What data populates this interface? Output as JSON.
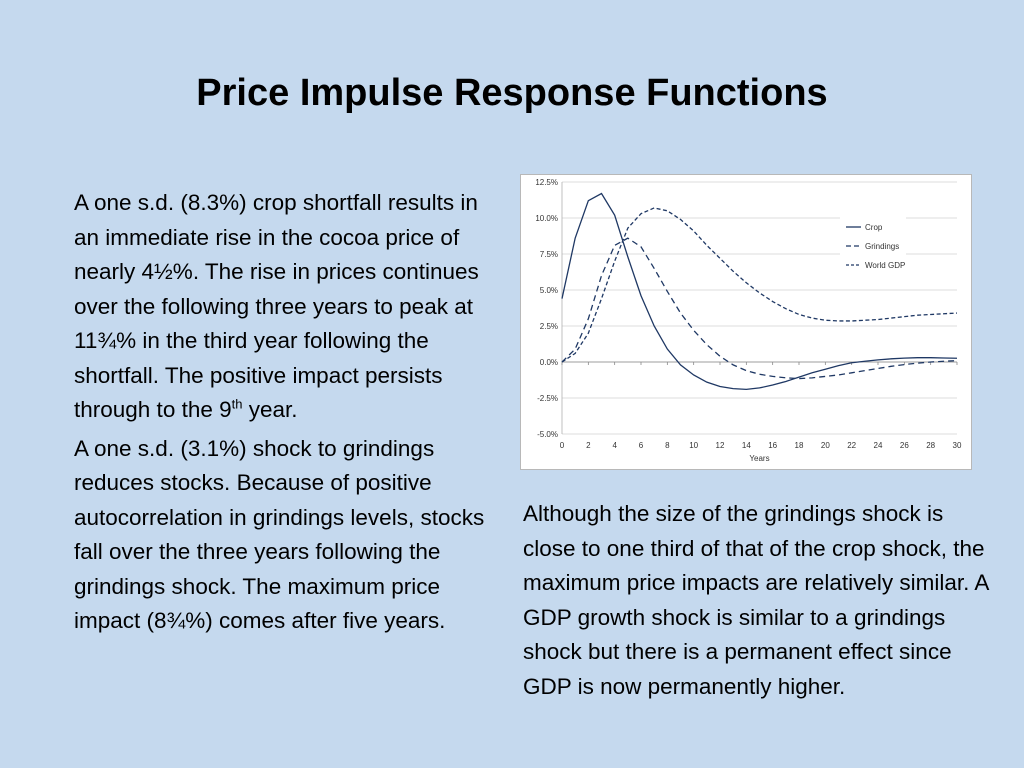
{
  "slide": {
    "title": "Price Impulse Response Functions",
    "left_paragraph_1": {
      "before_sup": "A one s.d. (8.3%) crop shortfall results in an immediate rise in the cocoa price of nearly 4½%. The rise in prices continues over the following three years to peak at 11¾% in the third year following the shortfall. The positive impact persists through to the 9",
      "sup": "th",
      "after_sup": " year."
    },
    "left_paragraph_2": "A one s.d. (3.1%) shock to grindings reduces stocks. Because of positive autocorrelation in grindings levels, stocks fall over the three years following the grindings shock. The maximum price impact (8¾%) comes after five years.",
    "right_paragraph": "Although the size of the grindings shock is close to one third of that of the crop shock, the maximum price impacts are relatively similar. A GDP growth shock is similar to a grindings shock but there is a permanent effect since GDP is now permanently higher."
  },
  "chart_data": {
    "type": "line",
    "xlabel": "Years",
    "ylabel": "",
    "xlim": [
      0,
      30
    ],
    "ylim": [
      -5.0,
      12.5
    ],
    "x_ticks": [
      "0",
      "2",
      "4",
      "6",
      "8",
      "10",
      "12",
      "14",
      "16",
      "18",
      "20",
      "22",
      "24",
      "26",
      "28",
      "30"
    ],
    "y_ticks": [
      "12.5%",
      "10.0%",
      "7.5%",
      "5.0%",
      "2.5%",
      "0.0%",
      "-2.5%",
      "-5.0%"
    ],
    "grid": true,
    "legend_position": "right",
    "x": [
      0,
      1,
      2,
      3,
      4,
      5,
      6,
      7,
      8,
      9,
      10,
      11,
      12,
      13,
      14,
      15,
      16,
      17,
      18,
      19,
      20,
      21,
      22,
      23,
      24,
      25,
      26,
      27,
      28,
      29,
      30
    ],
    "series": [
      {
        "name": "Crop",
        "style": "solid",
        "color": "#1f3864",
        "values": [
          4.4,
          8.6,
          11.2,
          11.7,
          10.2,
          7.3,
          4.6,
          2.5,
          0.9,
          -0.2,
          -0.9,
          -1.4,
          -1.7,
          -1.85,
          -1.9,
          -1.8,
          -1.6,
          -1.35,
          -1.05,
          -0.75,
          -0.5,
          -0.25,
          -0.05,
          0.05,
          0.15,
          0.22,
          0.27,
          0.3,
          0.3,
          0.28,
          0.26
        ]
      },
      {
        "name": "Grindings",
        "style": "dashed",
        "color": "#1f3864",
        "values": [
          0.0,
          0.9,
          3.0,
          6.0,
          8.1,
          8.6,
          8.0,
          6.5,
          4.9,
          3.4,
          2.2,
          1.2,
          0.4,
          -0.2,
          -0.6,
          -0.85,
          -1.0,
          -1.1,
          -1.15,
          -1.1,
          -1.0,
          -0.9,
          -0.75,
          -0.6,
          -0.45,
          -0.3,
          -0.18,
          -0.08,
          0.0,
          0.05,
          0.1
        ]
      },
      {
        "name": "World GDP",
        "style": "dashed",
        "color": "#1f3864",
        "values": [
          0.0,
          0.6,
          2.0,
          4.4,
          7.0,
          9.3,
          10.3,
          10.7,
          10.5,
          9.9,
          9.1,
          8.1,
          7.2,
          6.3,
          5.5,
          4.8,
          4.2,
          3.7,
          3.3,
          3.05,
          2.9,
          2.85,
          2.85,
          2.9,
          2.95,
          3.05,
          3.15,
          3.25,
          3.3,
          3.35,
          3.4
        ]
      }
    ]
  }
}
